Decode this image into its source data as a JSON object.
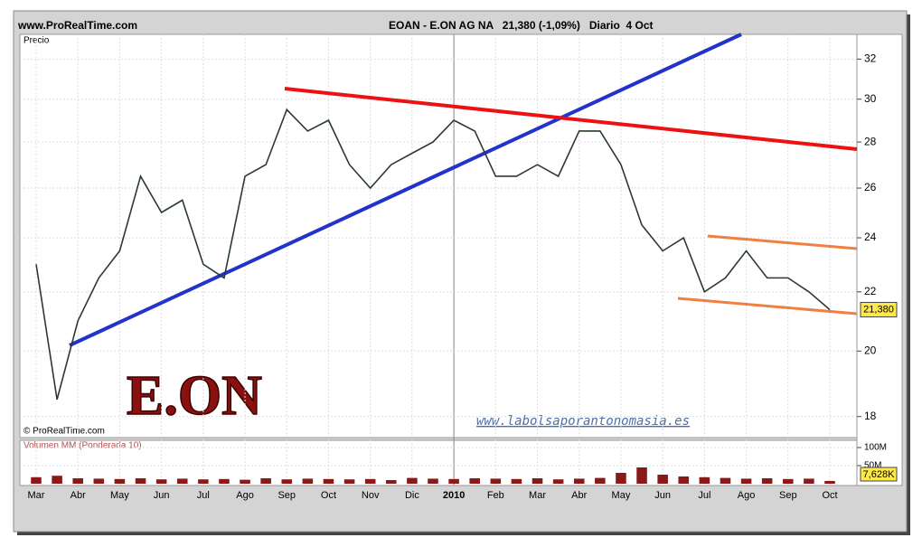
{
  "header": {
    "site": "www.ProRealTime.com",
    "instrument": "EOAN - E.ON AG NA   21,380 (-1,09%)   Diario  4 Oct",
    "copyright": "© ProRealTime.com",
    "logo": "E.ON",
    "watermark": "www.labolsaporantonomasia.es"
  },
  "chart_data": [
    {
      "type": "line",
      "title": "Precio",
      "log": true,
      "grid": true,
      "categories": [
        "Mar",
        null,
        "Abr",
        null,
        "May",
        null,
        "Jun",
        null,
        "Jul",
        null,
        "Ago",
        null,
        "Sep",
        null,
        "Oct",
        null,
        "Nov",
        null,
        "Dic",
        null,
        "2010",
        null,
        "Feb",
        null,
        "Mar",
        null,
        "Abr",
        null,
        "May",
        null,
        "Jun",
        null,
        "Jul",
        null,
        "Ago",
        null,
        "Sep",
        null,
        "Oct"
      ],
      "series": [
        {
          "name": "EOAN",
          "color": "#2b3b2b",
          "values": [
            23,
            18.5,
            21,
            22.5,
            23.5,
            26.5,
            25,
            25.5,
            23,
            22.5,
            26.5,
            27,
            29.5,
            28.5,
            29,
            27,
            26,
            27,
            27.5,
            28,
            29,
            28.5,
            26.5,
            26.5,
            27,
            26.5,
            28.5,
            28.5,
            27,
            24.5,
            23.5,
            24,
            22,
            22.5,
            23.5,
            22.5,
            22.5,
            22,
            21.38
          ]
        }
      ],
      "last_label": "21,380",
      "ylim": [
        17.4,
        33.3
      ],
      "yticks": [
        18,
        20,
        22,
        24,
        26,
        28,
        30,
        32
      ]
    },
    {
      "type": "bar",
      "title": "Volumen MM (Ponderada 10)",
      "color": "#8a1a1a",
      "values": [
        18000000,
        22000000,
        15000000,
        14000000,
        13000000,
        15000000,
        12000000,
        14000000,
        12000000,
        13000000,
        11000000,
        15000000,
        12000000,
        14000000,
        13000000,
        12000000,
        13000000,
        10000000,
        16000000,
        14000000,
        13000000,
        15000000,
        14000000,
        13000000,
        15000000,
        12000000,
        14000000,
        16000000,
        30000000,
        45000000,
        25000000,
        20000000,
        18000000,
        16000000,
        14000000,
        15000000,
        13000000,
        14000000,
        7628000
      ],
      "last_label": "7,628K",
      "ylim": [
        0,
        120000000
      ],
      "yticks": [
        {
          "value": 50000000,
          "label": "50M"
        },
        {
          "value": 100000000,
          "label": "100M"
        }
      ]
    }
  ]
}
